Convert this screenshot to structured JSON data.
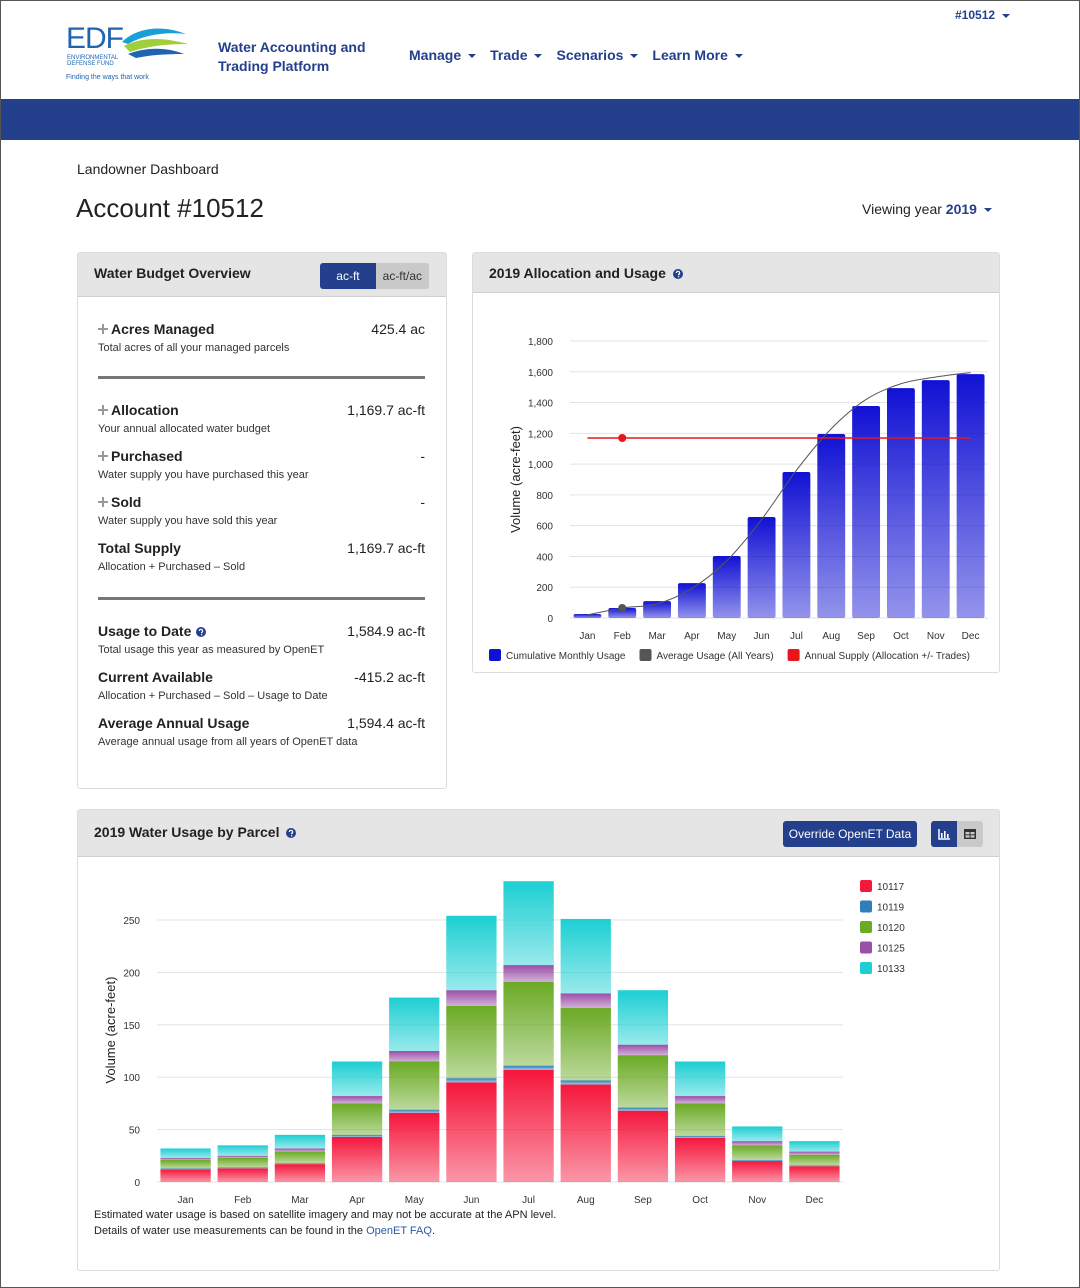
{
  "header": {
    "logo": "EDF",
    "logo_subtitle": "ENVIRONMENTAL DEFENSE FUND",
    "tagline": "Finding the ways that work",
    "app_title": "Water Accounting and Trading Platform",
    "nav": [
      "Manage",
      "Trade",
      "Scenarios",
      "Learn More"
    ],
    "account_menu": "#10512"
  },
  "page": {
    "breadcrumb": "Landowner Dashboard",
    "title": "Account #10512",
    "year_label": "Viewing year",
    "year": "2019"
  },
  "budget": {
    "title": "Water Budget Overview",
    "units": [
      "ac-ft",
      "ac-ft/ac"
    ],
    "active_unit": 0,
    "groups": [
      [
        {
          "label": "Acres Managed",
          "value": "425.4 ac",
          "description": "Total acres of all your managed parcels",
          "expandable": true
        }
      ],
      [
        {
          "label": "Allocation",
          "value": "1,169.7 ac-ft",
          "description": "Your annual allocated water budget",
          "expandable": true
        },
        {
          "label": "Purchased",
          "value": "-",
          "description": "Water supply you have purchased this year",
          "expandable": true
        },
        {
          "label": "Sold",
          "value": "-",
          "description": "Water supply you have sold this year",
          "expandable": true
        },
        {
          "label": "Total Supply",
          "value": "1,169.7 ac-ft",
          "description": "Allocation + Purchased – Sold"
        }
      ],
      [
        {
          "label": "Usage to Date",
          "value": "1,584.9 ac-ft",
          "description": "Total usage this year as measured by OpenET",
          "help": true
        },
        {
          "label": "Current Available",
          "value": "-415.2 ac-ft",
          "description": "Allocation + Purchased – Sold – Usage to Date"
        },
        {
          "label": "Average Annual Usage",
          "value": "1,594.4 ac-ft",
          "description": "Average annual usage from all years of OpenET data"
        }
      ]
    ]
  },
  "parcel_card": {
    "button": "Override OpenET Data",
    "note": "Estimated water usage is based on satellite imagery and may not be accurate at the APN level.",
    "note2": "Details of water use measurements can be found in the ",
    "link": "OpenET FAQ",
    "note2_end": "."
  },
  "chart_data": [
    {
      "type": "bar",
      "title": "2019 Allocation and Usage",
      "y_label": "Volume (acre-feet)",
      "categories": [
        "Jan",
        "Feb",
        "Mar",
        "Apr",
        "May",
        "Jun",
        "Jul",
        "Aug",
        "Sep",
        "Oct",
        "Nov",
        "Dec"
      ],
      "series": [
        {
          "name": "Cumulative Monthly Usage",
          "type": "bar",
          "color": "#1111d4",
          "values": [
            26,
            65,
            110,
            227,
            403,
            656,
            949,
            1196,
            1378,
            1494,
            1546,
            1584.9
          ]
        },
        {
          "name": "Average Usage (All Years)",
          "type": "line",
          "color": "#555555",
          "values": [
            20,
            65,
            92,
            192,
            372,
            640,
            960,
            1230,
            1420,
            1522,
            1566,
            1594.4
          ]
        },
        {
          "name": "Annual Supply (Allocation +/- Trades)",
          "type": "line",
          "color": "#e8161b",
          "values": [
            1169.7,
            1169.7,
            1169.7,
            1169.7,
            1169.7,
            1169.7,
            1169.7,
            1169.7,
            1169.7,
            1169.7,
            1169.7,
            1169.7
          ]
        }
      ],
      "hover_index": 1,
      "ylim": [
        0,
        1800
      ],
      "yticks": [
        0,
        200,
        400,
        600,
        800,
        {
          "value": 1000,
          "label": "1,000"
        },
        {
          "value": 1200,
          "label": "1,200"
        },
        {
          "value": 1400,
          "label": "1,400"
        },
        {
          "value": 1600,
          "label": "1,600"
        },
        {
          "value": 1800,
          "label": "1,800"
        }
      ],
      "grid": true,
      "legend": "bottom"
    },
    {
      "type": "bar",
      "stacked": true,
      "title": "2019 Water Usage by Parcel",
      "y_label": "Volume (acre-feet)",
      "categories": [
        "Jan",
        "Feb",
        "Mar",
        "Apr",
        "May",
        "Jun",
        "Jul",
        "Aug",
        "Sep",
        "Oct",
        "Nov",
        "Dec"
      ],
      "series": [
        {
          "name": "10117",
          "color": "#f5173c",
          "values": [
            12,
            13,
            17,
            43,
            66,
            95,
            107,
            93,
            68,
            42,
            20,
            15
          ]
        },
        {
          "name": "10119",
          "color": "#2e7fb8",
          "values": [
            1,
            1,
            1,
            2,
            3,
            4,
            4,
            4,
            3,
            2,
            1,
            1
          ]
        },
        {
          "name": "10120",
          "color": "#6aaa24",
          "values": [
            8,
            9,
            11,
            30,
            46,
            69,
            80,
            69,
            50,
            31,
            14,
            10
          ]
        },
        {
          "name": "10125",
          "color": "#9b4fa8",
          "values": [
            2,
            2,
            3,
            7,
            10,
            15,
            16,
            14,
            10,
            7,
            4,
            3
          ]
        },
        {
          "name": "10133",
          "color": "#1ccfd3",
          "values": [
            9,
            10,
            13,
            33,
            51,
            71,
            80,
            71,
            52,
            33,
            14,
            10
          ]
        }
      ],
      "ylim": [
        0,
        290
      ],
      "yticks": [
        0,
        50,
        100,
        150,
        200,
        250
      ],
      "grid": true,
      "legend": "right"
    }
  ]
}
